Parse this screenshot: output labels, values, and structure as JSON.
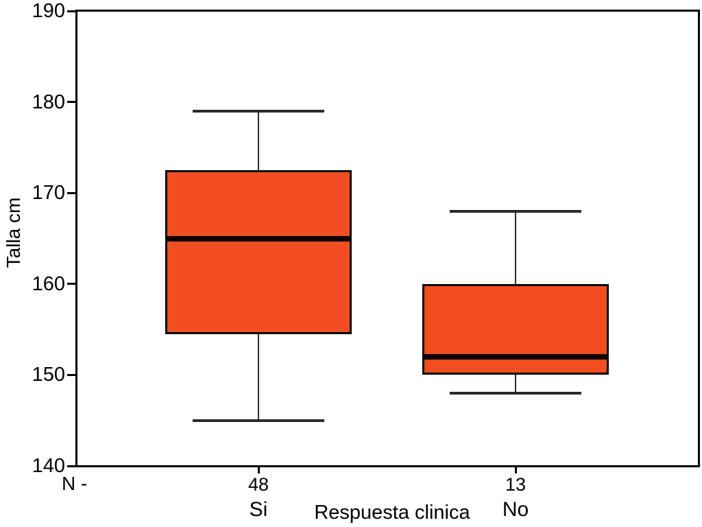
{
  "chart_data": {
    "type": "boxplot",
    "title": "",
    "ylabel": "Talla cm",
    "xlabel": "Respuesta clinica",
    "n_prefix": "N -",
    "ylim": [
      140,
      190
    ],
    "yticks": [
      190,
      180,
      170,
      160,
      150,
      140
    ],
    "grid": false,
    "box_fill_color": "#F04E20",
    "box_border_color": "#000000",
    "median_color": "#0d0202",
    "series": [
      {
        "category": "Si",
        "n": "48",
        "min": 145,
        "q1": 154.5,
        "median": 165,
        "q3": 172.5,
        "max": 179
      },
      {
        "category": "No",
        "n": "13",
        "min": 148,
        "q1": 150,
        "median": 152,
        "q3": 160,
        "max": 168
      }
    ]
  }
}
